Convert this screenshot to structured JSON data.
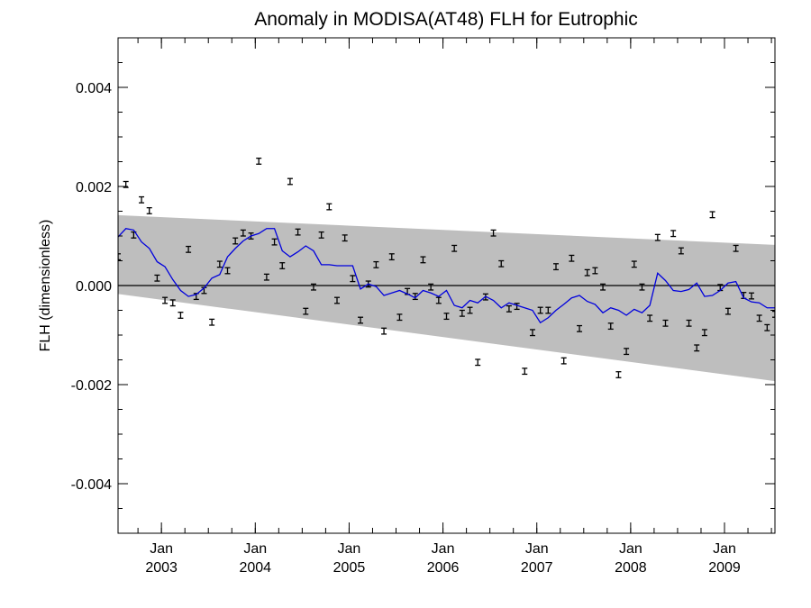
{
  "chart_data": {
    "type": "line",
    "title": "Anomaly in MODISA(AT48) FLH for Eutrophic",
    "ylabel": "FLH (dimensionless)",
    "xlabel": "",
    "xlim": [
      "2002-07-15",
      "2009-07-15"
    ],
    "ylim": [
      -0.005,
      0.005
    ],
    "y_ticks": [
      -0.004,
      -0.002,
      0.0,
      0.002,
      0.004
    ],
    "y_tick_labels": [
      "-0.004",
      "-0.002",
      "0.000",
      "0.002",
      "0.004"
    ],
    "x_ticks": [
      "2003-01",
      "2004-01",
      "2005-01",
      "2006-01",
      "2007-01",
      "2008-01",
      "2009-01"
    ],
    "x_tick_labels": [
      {
        "month": "Jan",
        "year": "2003"
      },
      {
        "month": "Jan",
        "year": "2004"
      },
      {
        "month": "Jan",
        "year": "2005"
      },
      {
        "month": "Jan",
        "year": "2006"
      },
      {
        "month": "Jan",
        "year": "2007"
      },
      {
        "month": "Jan",
        "year": "2008"
      },
      {
        "month": "Jan",
        "year": "2009"
      }
    ],
    "grid": false,
    "zero_line": 0.0,
    "band": {
      "color": "#bebebe",
      "start": {
        "date": "2002-07-15",
        "upper": 0.00142,
        "lower": -0.00017
      },
      "end": {
        "date": "2009-07-15",
        "upper": 0.00082,
        "lower": -0.00193
      }
    },
    "series": [
      {
        "kind": "monthly_anomaly_with_error_bars",
        "color": "#000000",
        "error": 6e-05,
        "x": [
          "2002-07",
          "2002-08",
          "2002-09",
          "2002-10",
          "2002-11",
          "2002-12",
          "2003-01",
          "2003-02",
          "2003-03",
          "2003-04",
          "2003-05",
          "2003-06",
          "2003-07",
          "2003-08",
          "2003-09",
          "2003-10",
          "2003-11",
          "2003-12",
          "2004-01",
          "2004-02",
          "2004-03",
          "2004-04",
          "2004-05",
          "2004-06",
          "2004-07",
          "2004-08",
          "2004-09",
          "2004-10",
          "2004-11",
          "2004-12",
          "2005-01",
          "2005-02",
          "2005-03",
          "2005-04",
          "2005-05",
          "2005-06",
          "2005-07",
          "2005-08",
          "2005-09",
          "2005-10",
          "2005-11",
          "2005-12",
          "2006-01",
          "2006-02",
          "2006-03",
          "2006-04",
          "2006-05",
          "2006-06",
          "2006-07",
          "2006-08",
          "2006-09",
          "2006-10",
          "2006-11",
          "2006-12",
          "2007-01",
          "2007-02",
          "2007-03",
          "2007-04",
          "2007-05",
          "2007-06",
          "2007-07",
          "2007-08",
          "2007-09",
          "2007-10",
          "2007-11",
          "2007-12",
          "2008-01",
          "2008-02",
          "2008-03",
          "2008-04",
          "2008-05",
          "2008-06",
          "2008-07",
          "2008-08",
          "2008-09",
          "2008-10",
          "2008-11",
          "2008-12",
          "2009-01",
          "2009-02",
          "2009-03",
          "2009-04",
          "2009-05",
          "2009-06",
          "2009-07"
        ],
        "y": [
          0.00058,
          0.00204,
          0.00102,
          0.00173,
          0.00151,
          0.00015,
          -0.0003,
          -0.00035,
          -0.0006,
          0.00073,
          -0.00022,
          -0.0001,
          -0.00074,
          0.00043,
          0.0003,
          0.0009,
          0.00106,
          0.001,
          0.00251,
          0.00017,
          0.00088,
          0.0004,
          0.0021,
          0.00108,
          -0.00052,
          -3e-05,
          0.00102,
          0.00159,
          -0.0003,
          0.00096,
          0.00014,
          -0.0007,
          3e-05,
          0.00042,
          -0.00092,
          0.00058,
          -0.00064,
          -0.00012,
          -0.00022,
          0.00052,
          -3e-05,
          -0.0003,
          -0.00062,
          0.00075,
          -0.00056,
          -0.0005,
          -0.00155,
          -0.00023,
          0.00106,
          0.00044,
          -0.00047,
          -0.00042,
          -0.00173,
          -0.00095,
          -0.0005,
          -0.0005,
          0.00038,
          -0.00152,
          0.00055,
          -0.00087,
          0.00026,
          0.0003,
          -3e-05,
          -0.00082,
          -0.0018,
          -0.00133,
          0.00043,
          -3e-05,
          -0.00066,
          0.00097,
          -0.00076,
          0.00105,
          0.0007,
          -0.00076,
          -0.00126,
          -0.00095,
          0.00143,
          -4e-05,
          -0.00052,
          0.00075,
          -0.0002,
          -0.00021,
          -0.00066,
          -0.00085,
          -0.00058
        ]
      },
      {
        "kind": "smoothed",
        "color": "#0000dd",
        "x": [
          "2002-07",
          "2002-08",
          "2002-09",
          "2002-10",
          "2002-11",
          "2002-12",
          "2003-01",
          "2003-02",
          "2003-03",
          "2003-04",
          "2003-05",
          "2003-06",
          "2003-07",
          "2003-08",
          "2003-09",
          "2003-10",
          "2003-11",
          "2003-12",
          "2004-01",
          "2004-02",
          "2004-03",
          "2004-04",
          "2004-05",
          "2004-06",
          "2004-07",
          "2004-08",
          "2004-09",
          "2004-10",
          "2004-11",
          "2004-12",
          "2005-01",
          "2005-02",
          "2005-03",
          "2005-04",
          "2005-05",
          "2005-06",
          "2005-07",
          "2005-08",
          "2005-09",
          "2005-10",
          "2005-11",
          "2005-12",
          "2006-01",
          "2006-02",
          "2006-03",
          "2006-04",
          "2006-05",
          "2006-06",
          "2006-07",
          "2006-08",
          "2006-09",
          "2006-10",
          "2006-11",
          "2006-12",
          "2007-01",
          "2007-02",
          "2007-03",
          "2007-04",
          "2007-05",
          "2007-06",
          "2007-07",
          "2007-08",
          "2007-09",
          "2007-10",
          "2007-11",
          "2007-12",
          "2008-01",
          "2008-02",
          "2008-03",
          "2008-04",
          "2008-05",
          "2008-06",
          "2008-07",
          "2008-08",
          "2008-09",
          "2008-10",
          "2008-11",
          "2008-12",
          "2009-01",
          "2009-02",
          "2009-03",
          "2009-04",
          "2009-05",
          "2009-06",
          "2009-07"
        ],
        "y": [
          0.00098,
          0.00115,
          0.00112,
          0.00088,
          0.00075,
          0.00048,
          0.00038,
          0.00012,
          -0.0001,
          -0.00022,
          -0.00018,
          -5e-05,
          0.00015,
          0.00022,
          0.00058,
          0.00075,
          0.0009,
          0.001,
          0.00105,
          0.00115,
          0.00115,
          0.0007,
          0.00058,
          0.00068,
          0.0008,
          0.0007,
          0.00042,
          0.00042,
          0.0004,
          0.0004,
          0.0004,
          -7e-05,
          3e-05,
          -2e-05,
          -0.0002,
          -0.00015,
          -0.0001,
          -0.00017,
          -0.00025,
          -0.0001,
          -0.00015,
          -0.00022,
          -0.0001,
          -0.0004,
          -0.00045,
          -0.0003,
          -0.00035,
          -0.00022,
          -0.0003,
          -0.00045,
          -0.00035,
          -0.0004,
          -0.00045,
          -0.0005,
          -0.00075,
          -0.00065,
          -0.0005,
          -0.00038,
          -0.00025,
          -0.0002,
          -0.00032,
          -0.00038,
          -0.00055,
          -0.00045,
          -0.0005,
          -0.0006,
          -0.00048,
          -0.00055,
          -0.0004,
          0.00025,
          0.0001,
          -0.0001,
          -0.00012,
          -8e-05,
          5e-05,
          -0.00022,
          -0.0002,
          -0.0001,
          5e-05,
          8e-05,
          -0.00025,
          -0.00033,
          -0.00035,
          -0.00045,
          -0.00045
        ]
      }
    ]
  }
}
